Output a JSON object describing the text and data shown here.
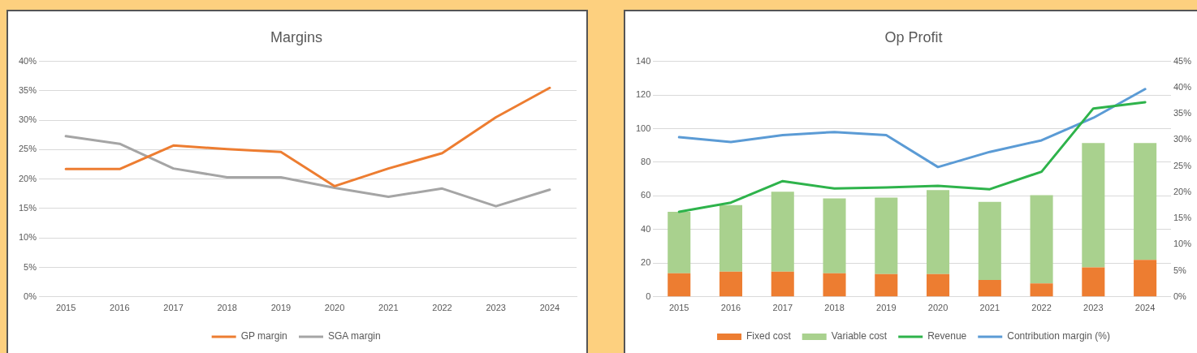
{
  "chart_data": [
    {
      "type": "line",
      "title": "Margins",
      "categories": [
        "2015",
        "2016",
        "2017",
        "2018",
        "2019",
        "2020",
        "2021",
        "2022",
        "2023",
        "2024"
      ],
      "series": [
        {
          "name": "GP margin",
          "color": "#ed7d31",
          "values": [
            21.7,
            21.7,
            25.7,
            25.1,
            24.6,
            18.8,
            21.8,
            24.4,
            30.5,
            35.5
          ]
        },
        {
          "name": "SGA margin",
          "color": "#a5a5a5",
          "values": [
            27.3,
            26.0,
            21.8,
            20.3,
            20.3,
            18.5,
            17.0,
            18.4,
            15.4,
            18.2
          ]
        }
      ],
      "ylim": [
        0,
        40
      ],
      "yticks": [
        {
          "value": 0,
          "label": "0%"
        },
        {
          "value": 5,
          "label": "5%"
        },
        {
          "value": 10,
          "label": "10%"
        },
        {
          "value": 15,
          "label": "15%"
        },
        {
          "value": 20,
          "label": "20%"
        },
        {
          "value": 25,
          "label": "25%"
        },
        {
          "value": 30,
          "label": "30%"
        },
        {
          "value": 35,
          "label": "35%"
        },
        {
          "value": 40,
          "label": "40%"
        }
      ],
      "grid": "y",
      "legend": "bottom",
      "marker": "none",
      "line_style": "solid"
    },
    {
      "type": "bar",
      "title": "Op Profit",
      "categories": [
        "2015",
        "2016",
        "2017",
        "2018",
        "2019",
        "2020",
        "2021",
        "2022",
        "2023",
        "2024"
      ],
      "stacked": true,
      "series": [
        {
          "name": "Fixed cost",
          "color": "#ed7d31",
          "values": [
            14,
            15,
            15,
            14,
            13.5,
            13.5,
            10,
            8,
            17.5,
            22
          ]
        },
        {
          "name": "Variable cost",
          "color": "#a9d18e",
          "values": [
            36.5,
            39.5,
            47.5,
            44.5,
            45.5,
            50,
            46.5,
            52.5,
            74,
            69.5
          ]
        },
        {
          "name": "Revenue",
          "type": "line",
          "color": "#2eb34b",
          "values": [
            50.6,
            56,
            68.8,
            64.4,
            65,
            66,
            64,
            74.4,
            112,
            115.7
          ]
        },
        {
          "name": "Contribution margin (%)",
          "type": "line",
          "axis": "y2",
          "color": "#5b9bd5",
          "values": [
            30.5,
            29.6,
            30.9,
            31.5,
            30.9,
            24.8,
            27.7,
            29.9,
            34.2,
            39.7
          ]
        }
      ],
      "ylim": [
        0,
        140
      ],
      "yticks": [
        0,
        20,
        40,
        60,
        80,
        100,
        120,
        140
      ],
      "y2lim": [
        0,
        45
      ],
      "y2ticks": [
        {
          "value": 0,
          "label": "0%"
        },
        {
          "value": 5,
          "label": "5%"
        },
        {
          "value": 10,
          "label": "10%"
        },
        {
          "value": 15,
          "label": "15%"
        },
        {
          "value": 20,
          "label": "20%"
        },
        {
          "value": 25,
          "label": "25%"
        },
        {
          "value": 30,
          "label": "30%"
        },
        {
          "value": 35,
          "label": "35%"
        },
        {
          "value": 40,
          "label": "40%"
        },
        {
          "value": 45,
          "label": "45%"
        }
      ],
      "grid": "y",
      "legend": "bottom",
      "marker": "none",
      "line_style": "solid"
    }
  ]
}
